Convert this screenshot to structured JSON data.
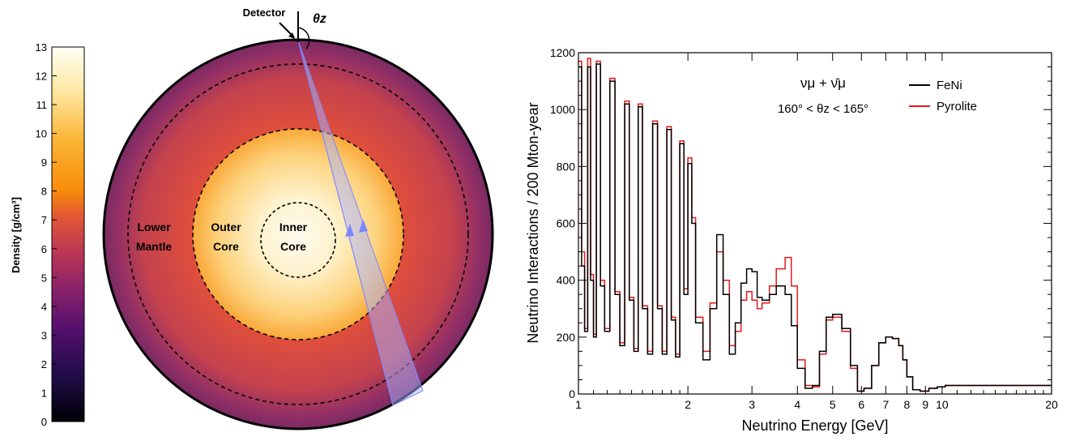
{
  "left_panel": {
    "colorbar": {
      "label": "Density [g/cm³]",
      "ticks": [
        "0",
        "1",
        "2",
        "3",
        "4",
        "5",
        "6",
        "7",
        "8",
        "9",
        "10",
        "11",
        "12",
        "13"
      ],
      "range": [
        0,
        13
      ]
    },
    "labels": {
      "detector": "Detector",
      "zenith_symbol": "θz",
      "lower_mantle_1": "Lower",
      "lower_mantle_2": "Mantle",
      "outer_core_1": "Outer",
      "outer_core_2": "Core",
      "inner_core_1": "Inner",
      "inner_core_2": "Core"
    },
    "colors": {
      "beam": "#a9b4ff",
      "mantle_outer": "#7d2f5a",
      "mantle_inner": "#d2523d",
      "core_edge": "#fbb53a",
      "core_center": "#fff6e0"
    }
  },
  "chart_data": {
    "type": "line",
    "xlabel": "Neutrino Energy [GeV]",
    "ylabel": "Neutrino Interactions / 200 Mton-year",
    "xscale": "log",
    "xlim": [
      1,
      20
    ],
    "ylim": [
      0,
      1200
    ],
    "xticks": [
      1,
      2,
      3,
      4,
      5,
      6,
      7,
      8,
      9,
      10,
      20
    ],
    "xtick_labels": [
      "1",
      "2",
      "3",
      "4",
      "5",
      "6",
      "7",
      "8",
      "9",
      "10",
      "20"
    ],
    "yticks": [
      0,
      200,
      400,
      600,
      800,
      1000,
      1200
    ],
    "ytick_labels": [
      "0",
      "200",
      "400",
      "600",
      "800",
      "1000",
      "1200"
    ],
    "annotation_1": "νμ + ν̄μ",
    "annotation_2": "160° < θz < 165°",
    "legend_position": "top-right",
    "series": [
      {
        "name": "FeNi",
        "color": "#000000",
        "x": [
          1.0,
          1.02,
          1.04,
          1.06,
          1.08,
          1.1,
          1.12,
          1.15,
          1.18,
          1.22,
          1.26,
          1.3,
          1.34,
          1.38,
          1.42,
          1.46,
          1.5,
          1.55,
          1.6,
          1.65,
          1.7,
          1.75,
          1.8,
          1.85,
          1.9,
          1.95,
          2.0,
          2.05,
          2.1,
          2.2,
          2.3,
          2.4,
          2.5,
          2.6,
          2.7,
          2.8,
          2.9,
          3.0,
          3.1,
          3.2,
          3.35,
          3.5,
          3.7,
          3.85,
          4.0,
          4.2,
          4.4,
          4.6,
          4.8,
          5.0,
          5.3,
          5.6,
          5.85,
          6.1,
          6.4,
          6.7,
          7.0,
          7.3,
          7.6,
          7.8,
          8.0,
          8.3,
          8.7,
          9.2,
          9.7,
          10.2,
          10.8,
          11.3,
          12.0,
          13.0,
          14.0,
          15.0,
          16.5,
          18.0,
          20.0
        ],
        "y": [
          1150,
          450,
          220,
          1150,
          400,
          200,
          1160,
          380,
          220,
          1100,
          350,
          170,
          1020,
          330,
          150,
          1010,
          300,
          140,
          950,
          300,
          140,
          930,
          260,
          130,
          880,
          350,
          810,
          600,
          250,
          120,
          300,
          560,
          350,
          140,
          250,
          390,
          440,
          430,
          340,
          330,
          350,
          380,
          350,
          240,
          90,
          20,
          30,
          150,
          270,
          280,
          230,
          100,
          10,
          20,
          100,
          180,
          200,
          195,
          170,
          120,
          60,
          15,
          10,
          20,
          25,
          30,
          30,
          30,
          30,
          30,
          30,
          30,
          30,
          30,
          30
        ]
      },
      {
        "name": "Pyrolite",
        "color": "#e31a1c",
        "x": [
          1.0,
          1.02,
          1.04,
          1.06,
          1.08,
          1.1,
          1.12,
          1.15,
          1.18,
          1.22,
          1.26,
          1.3,
          1.34,
          1.38,
          1.42,
          1.46,
          1.5,
          1.55,
          1.6,
          1.65,
          1.7,
          1.75,
          1.8,
          1.85,
          1.9,
          1.95,
          2.0,
          2.05,
          2.1,
          2.2,
          2.3,
          2.4,
          2.5,
          2.6,
          2.7,
          2.8,
          2.9,
          3.0,
          3.1,
          3.2,
          3.35,
          3.5,
          3.7,
          3.85,
          4.0,
          4.2,
          4.4,
          4.6,
          4.8,
          5.0,
          5.3,
          5.6,
          5.85,
          6.1,
          6.4,
          6.7,
          7.0,
          7.3,
          7.6,
          7.8,
          8.0,
          8.3,
          8.7,
          9.2,
          9.7,
          10.2,
          10.8,
          11.3,
          12.0,
          13.0,
          14.0,
          15.0,
          16.5,
          18.0,
          20.0
        ],
        "y": [
          1170,
          500,
          230,
          1180,
          420,
          210,
          1170,
          400,
          230,
          1110,
          360,
          180,
          1030,
          340,
          160,
          1020,
          310,
          150,
          960,
          310,
          150,
          940,
          270,
          140,
          890,
          370,
          830,
          620,
          270,
          150,
          320,
          500,
          400,
          170,
          220,
          330,
          360,
          330,
          300,
          320,
          380,
          440,
          480,
          380,
          120,
          30,
          25,
          140,
          260,
          270,
          220,
          90,
          10,
          20,
          100,
          180,
          200,
          195,
          170,
          120,
          60,
          15,
          10,
          20,
          25,
          30,
          30,
          30,
          30,
          30,
          30,
          30,
          30,
          30,
          30
        ]
      }
    ]
  }
}
